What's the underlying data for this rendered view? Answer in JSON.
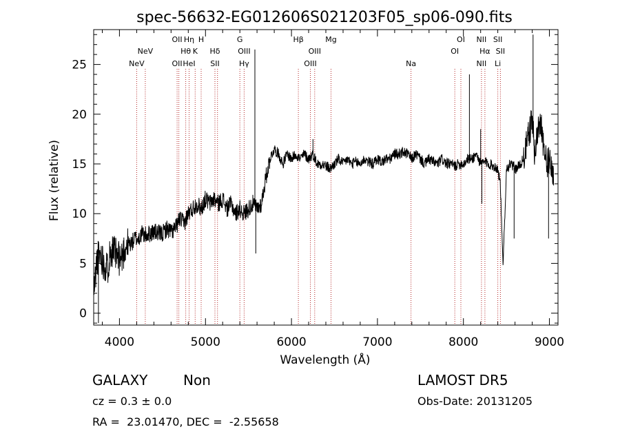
{
  "chart_data": {
    "type": "line",
    "title": "spec-56632-EG012606S021203F05_sp06-090.fits",
    "xlabel": "Wavelength (Å)",
    "ylabel": "Flux (relative)",
    "xlim": [
      3700,
      9100
    ],
    "ylim": [
      -1.2,
      28.5
    ],
    "xticks": [
      4000,
      5000,
      6000,
      7000,
      8000,
      9000
    ],
    "yticks": [
      0,
      5,
      10,
      15,
      20,
      25
    ],
    "grid": false,
    "series": [
      {
        "x": [
          3700,
          3740,
          3780,
          3820,
          3860,
          3900,
          3940,
          3980,
          4020,
          4060,
          4100,
          4140,
          4180,
          4220,
          4260,
          4300,
          4350,
          4400,
          4450,
          4500,
          4550,
          4600,
          4650,
          4700,
          4750,
          4800,
          4850,
          4900,
          4950,
          5000,
          5050,
          5100,
          5150,
          5200,
          5250,
          5300,
          5350,
          5400,
          5450,
          5500,
          5550,
          5600,
          5650,
          5700,
          5750,
          5800,
          5850,
          5900,
          5950,
          6000,
          6050,
          6100,
          6150,
          6200,
          6250,
          6300,
          6350,
          6400,
          6450,
          6500,
          6550,
          6600,
          6650,
          6700,
          6750,
          6800,
          6850,
          6900,
          6950,
          7000,
          7050,
          7100,
          7150,
          7200,
          7250,
          7300,
          7350,
          7400,
          7450,
          7500,
          7550,
          7600,
          7650,
          7700,
          7750,
          7800,
          7850,
          7900,
          7950,
          8000,
          8050,
          8100,
          8150,
          8200,
          8250,
          8300,
          8350,
          8400,
          8430,
          8460,
          8500,
          8550,
          8600,
          8650,
          8700,
          8750,
          8800,
          8830,
          8860,
          8900,
          8950,
          9000,
          9050
        ],
        "y": [
          2.0,
          5.5,
          6.0,
          5.0,
          4.5,
          6.5,
          6.0,
          5.5,
          5.5,
          6.5,
          7.0,
          7.0,
          7.5,
          7.5,
          8.0,
          7.8,
          8.0,
          8.2,
          8.0,
          8.0,
          8.5,
          8.2,
          8.5,
          9.5,
          9.0,
          10.0,
          10.5,
          11.0,
          10.5,
          11.5,
          11.0,
          11.5,
          11.0,
          11.5,
          10.5,
          11.0,
          10.0,
          10.5,
          10.0,
          10.5,
          11.0,
          10.5,
          11.0,
          13.5,
          15.5,
          16.5,
          16.0,
          15.0,
          16.0,
          15.5,
          16.0,
          15.5,
          16.0,
          15.5,
          16.0,
          15.0,
          15.0,
          14.8,
          14.5,
          15.0,
          15.5,
          15.0,
          15.5,
          15.0,
          15.2,
          15.0,
          15.5,
          15.2,
          15.0,
          15.5,
          15.2,
          15.5,
          15.5,
          16.0,
          16.0,
          16.2,
          16.0,
          15.5,
          16.0,
          15.5,
          15.0,
          15.5,
          15.2,
          15.0,
          15.5,
          15.0,
          15.0,
          14.8,
          15.0,
          15.0,
          15.5,
          15.5,
          16.0,
          15.0,
          15.2,
          15.0,
          14.8,
          14.5,
          13.0,
          4.5,
          14.5,
          15.0,
          14.5,
          14.8,
          15.5,
          17.5,
          19.5,
          16.0,
          18.0,
          19.5,
          15.5,
          15.0,
          14.0
        ],
        "spikes": [
          {
            "x": 3755,
            "y": -1.0
          },
          {
            "x": 3920,
            "y": 7.5
          },
          {
            "x": 5575,
            "y": 26.5
          },
          {
            "x": 5585,
            "y": 6.0
          },
          {
            "x": 6250,
            "y": 17.5
          },
          {
            "x": 8070,
            "y": 24.0
          },
          {
            "x": 8200,
            "y": 18.5
          },
          {
            "x": 8215,
            "y": 11.0
          },
          {
            "x": 8460,
            "y": 4.5
          },
          {
            "x": 8590,
            "y": 7.5
          },
          {
            "x": 8810,
            "y": 28.0
          },
          {
            "x": 8990,
            "y": 7.5
          }
        ]
      }
    ],
    "line_markers": [
      {
        "x": 4200,
        "color": "#b22222",
        "labels": [
          {
            "text": "NeV",
            "row": 3
          }
        ]
      },
      {
        "x": 4300,
        "color": "#b22222",
        "labels": [
          {
            "text": "NeV",
            "row": 2
          }
        ]
      },
      {
        "x": 4670,
        "color": "#b22222",
        "labels": [
          {
            "text": "OII",
            "row": 1
          },
          {
            "text": "OII",
            "row": 3
          }
        ]
      },
      {
        "x": 4690,
        "color": "#b22222",
        "labels": []
      },
      {
        "x": 4770,
        "color": "#b22222",
        "labels": [
          {
            "text": "Hθ",
            "row": 2
          }
        ]
      },
      {
        "x": 4810,
        "color": "#b22222",
        "labels": [
          {
            "text": "Hη",
            "row": 1
          },
          {
            "text": "HeI",
            "row": 3
          }
        ]
      },
      {
        "x": 4880,
        "color": "#b22222",
        "labels": [
          {
            "text": "K",
            "row": 2
          }
        ]
      },
      {
        "x": 4950,
        "color": "#b22222",
        "labels": [
          {
            "text": "H",
            "row": 1
          }
        ]
      },
      {
        "x": 5110,
        "color": "#b22222",
        "labels": [
          {
            "text": "Hδ",
            "row": 2
          },
          {
            "text": "SII",
            "row": 3
          }
        ]
      },
      {
        "x": 5140,
        "color": "#b22222",
        "labels": []
      },
      {
        "x": 5400,
        "color": "#b22222",
        "labels": [
          {
            "text": "G",
            "row": 1
          }
        ]
      },
      {
        "x": 5450,
        "color": "#b22222",
        "labels": [
          {
            "text": "OIII",
            "row": 2
          },
          {
            "text": "Hγ",
            "row": 3
          }
        ]
      },
      {
        "x": 6080,
        "color": "#b22222",
        "labels": [
          {
            "text": "Hβ",
            "row": 1
          }
        ]
      },
      {
        "x": 6220,
        "color": "#b22222",
        "labels": [
          {
            "text": "OIII",
            "row": 3
          }
        ]
      },
      {
        "x": 6270,
        "color": "#b22222",
        "labels": [
          {
            "text": "OIII",
            "row": 2
          }
        ]
      },
      {
        "x": 6460,
        "color": "#b22222",
        "labels": [
          {
            "text": "Mg",
            "row": 1
          }
        ]
      },
      {
        "x": 7390,
        "color": "#b22222",
        "labels": [
          {
            "text": "Na",
            "row": 3
          }
        ]
      },
      {
        "x": 7900,
        "color": "#b22222",
        "labels": [
          {
            "text": "OI",
            "row": 2
          }
        ]
      },
      {
        "x": 7970,
        "color": "#b22222",
        "labels": [
          {
            "text": "OI",
            "row": 1
          }
        ]
      },
      {
        "x": 8210,
        "color": "#b22222",
        "labels": [
          {
            "text": "NII",
            "row": 1
          },
          {
            "text": "NII",
            "row": 3
          }
        ]
      },
      {
        "x": 8250,
        "color": "#b22222",
        "labels": [
          {
            "text": "Hα",
            "row": 2
          }
        ]
      },
      {
        "x": 8400,
        "color": "#b22222",
        "labels": [
          {
            "text": "SII",
            "row": 1
          },
          {
            "text": "Li",
            "row": 3
          }
        ]
      },
      {
        "x": 8430,
        "color": "#b22222",
        "labels": [
          {
            "text": "SII",
            "row": 2
          }
        ]
      }
    ]
  },
  "info": {
    "class": "GALAXY",
    "subclass": "Non",
    "cz": "cz = 0.3 ± 0.0",
    "coords": "RA =  23.01470, DEC =  -2.55658",
    "survey": "LAMOST DR5",
    "obs_date": "Obs-Date: 20131205"
  }
}
